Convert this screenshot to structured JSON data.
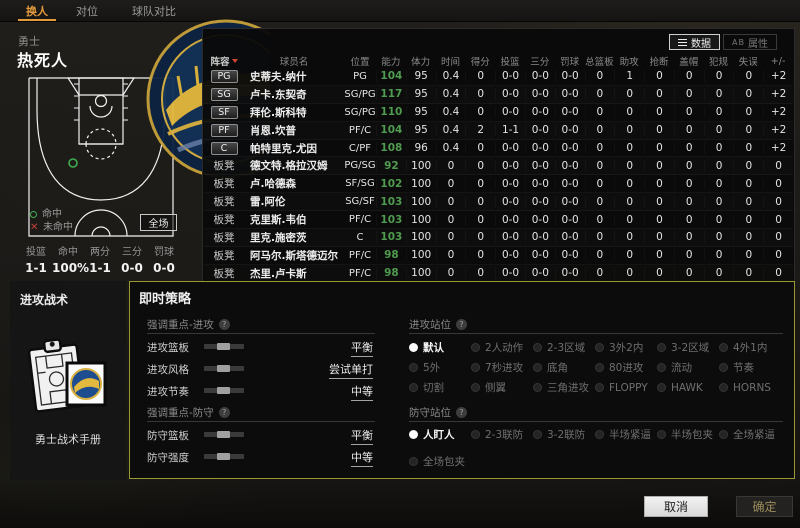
{
  "tabs": [
    {
      "label": "换人",
      "active": true
    },
    {
      "label": "对位",
      "active": false
    },
    {
      "label": "球队对比",
      "active": false
    }
  ],
  "team": {
    "name": "勇士",
    "lineup_name": "热死人"
  },
  "shot_chart": {
    "made_label": "命中",
    "missed_label": "未命中",
    "full_court_button": "全场"
  },
  "quick_stats": [
    {
      "label": "投篮",
      "value": "1-1"
    },
    {
      "label": "命中",
      "value": "100%"
    },
    {
      "label": "两分",
      "value": "1-1"
    },
    {
      "label": "三分",
      "value": "0-0"
    },
    {
      "label": "罚球",
      "value": "0-0"
    }
  ],
  "roster": {
    "data_button": "数据",
    "attr_prefix": "AB",
    "attr_button": "属性",
    "columns": [
      "阵容",
      "球员名",
      "位置",
      "能力",
      "体力",
      "时间",
      "得分",
      "投篮",
      "三分",
      "罚球",
      "总篮板",
      "助攻",
      "抢断",
      "盖帽",
      "犯规",
      "失误",
      "+/-"
    ],
    "players": [
      {
        "slot": "PG",
        "starter": true,
        "name": "史蒂夫.纳什",
        "pos": "PG",
        "ability": "104",
        "stamina": "95",
        "time": "0.4",
        "pts": "0",
        "fg": "0-0",
        "three": "0-0",
        "ft": "0-0",
        "reb": "0",
        "ast": "1",
        "stl": "0",
        "blk": "0",
        "foul": "0",
        "tov": "0",
        "plusminus": "+2"
      },
      {
        "slot": "SG",
        "starter": true,
        "name": "卢卡.东契奇",
        "pos": "SG/PG",
        "ability": "117",
        "stamina": "95",
        "time": "0.4",
        "pts": "0",
        "fg": "0-0",
        "three": "0-0",
        "ft": "0-0",
        "reb": "0",
        "ast": "0",
        "stl": "0",
        "blk": "0",
        "foul": "0",
        "tov": "0",
        "plusminus": "+2"
      },
      {
        "slot": "SF",
        "starter": true,
        "name": "拜伦.斯科特",
        "pos": "SG/PG",
        "ability": "110",
        "stamina": "95",
        "time": "0.4",
        "pts": "0",
        "fg": "0-0",
        "three": "0-0",
        "ft": "0-0",
        "reb": "0",
        "ast": "0",
        "stl": "0",
        "blk": "0",
        "foul": "0",
        "tov": "0",
        "plusminus": "+2"
      },
      {
        "slot": "PF",
        "starter": true,
        "name": "肖恩.坎普",
        "pos": "PF/C",
        "ability": "104",
        "stamina": "95",
        "time": "0.4",
        "pts": "2",
        "fg": "1-1",
        "three": "0-0",
        "ft": "0-0",
        "reb": "0",
        "ast": "0",
        "stl": "0",
        "blk": "0",
        "foul": "0",
        "tov": "0",
        "plusminus": "+2"
      },
      {
        "slot": "C",
        "starter": true,
        "name": "帕特里克.尤因",
        "pos": "C/PF",
        "ability": "108",
        "stamina": "96",
        "time": "0.4",
        "pts": "0",
        "fg": "0-0",
        "three": "0-0",
        "ft": "0-0",
        "reb": "0",
        "ast": "0",
        "stl": "0",
        "blk": "0",
        "foul": "0",
        "tov": "0",
        "plusminus": "+2"
      },
      {
        "slot": "板凳",
        "starter": false,
        "name": "德文特.格拉汉姆",
        "pos": "PG/SG",
        "ability": "92",
        "stamina": "100",
        "time": "0",
        "pts": "0",
        "fg": "0-0",
        "three": "0-0",
        "ft": "0-0",
        "reb": "0",
        "ast": "0",
        "stl": "0",
        "blk": "0",
        "foul": "0",
        "tov": "0",
        "plusminus": "0"
      },
      {
        "slot": "板凳",
        "starter": false,
        "name": "卢.哈德森",
        "pos": "SF/SG",
        "ability": "102",
        "stamina": "100",
        "time": "0",
        "pts": "0",
        "fg": "0-0",
        "three": "0-0",
        "ft": "0-0",
        "reb": "0",
        "ast": "0",
        "stl": "0",
        "blk": "0",
        "foul": "0",
        "tov": "0",
        "plusminus": "0"
      },
      {
        "slot": "板凳",
        "starter": false,
        "name": "雷.阿伦",
        "pos": "SG/SF",
        "ability": "103",
        "stamina": "100",
        "time": "0",
        "pts": "0",
        "fg": "0-0",
        "three": "0-0",
        "ft": "0-0",
        "reb": "0",
        "ast": "0",
        "stl": "0",
        "blk": "0",
        "foul": "0",
        "tov": "0",
        "plusminus": "0"
      },
      {
        "slot": "板凳",
        "starter": false,
        "name": "克里斯.韦伯",
        "pos": "PF/C",
        "ability": "103",
        "stamina": "100",
        "time": "0",
        "pts": "0",
        "fg": "0-0",
        "three": "0-0",
        "ft": "0-0",
        "reb": "0",
        "ast": "0",
        "stl": "0",
        "blk": "0",
        "foul": "0",
        "tov": "0",
        "plusminus": "0"
      },
      {
        "slot": "板凳",
        "starter": false,
        "name": "里克.施密茨",
        "pos": "C",
        "ability": "103",
        "stamina": "100",
        "time": "0",
        "pts": "0",
        "fg": "0-0",
        "three": "0-0",
        "ft": "0-0",
        "reb": "0",
        "ast": "0",
        "stl": "0",
        "blk": "0",
        "foul": "0",
        "tov": "0",
        "plusminus": "0"
      },
      {
        "slot": "板凳",
        "starter": false,
        "name": "阿马尔.斯塔德迈尔",
        "pos": "PF/C",
        "ability": "98",
        "stamina": "100",
        "time": "0",
        "pts": "0",
        "fg": "0-0",
        "three": "0-0",
        "ft": "0-0",
        "reb": "0",
        "ast": "0",
        "stl": "0",
        "blk": "0",
        "foul": "0",
        "tov": "0",
        "plusminus": "0"
      },
      {
        "slot": "板凳",
        "starter": false,
        "name": "杰里.卢卡斯",
        "pos": "PF/C",
        "ability": "98",
        "stamina": "100",
        "time": "0",
        "pts": "0",
        "fg": "0-0",
        "three": "0-0",
        "ft": "0-0",
        "reb": "0",
        "ast": "0",
        "stl": "0",
        "blk": "0",
        "foul": "0",
        "tov": "0",
        "plusminus": "0"
      }
    ]
  },
  "tactics": {
    "title": "进攻战术",
    "book_label": "勇士战术手册"
  },
  "strategy": {
    "title": "即时策略",
    "offense_emphasis": {
      "label": "强调重点-进攻",
      "rows": [
        {
          "label": "进攻篮板",
          "value": "平衡"
        },
        {
          "label": "进攻风格",
          "value": "尝试单打"
        },
        {
          "label": "进攻节奏",
          "value": "中等"
        }
      ]
    },
    "defense_emphasis": {
      "label": "强调重点-防守",
      "rows": [
        {
          "label": "防守篮板",
          "value": "平衡"
        },
        {
          "label": "防守强度",
          "value": "中等"
        }
      ]
    },
    "offense_sets": {
      "label": "进攻站位",
      "options": [
        {
          "label": "默认",
          "selected": true
        },
        {
          "label": "2人动作"
        },
        {
          "label": "2-3区域"
        },
        {
          "label": "3外2内"
        },
        {
          "label": "3-2区域"
        },
        {
          "label": "4外1内"
        },
        {
          "label": "5外"
        },
        {
          "label": "7秒进攻"
        },
        {
          "label": "底角"
        },
        {
          "label": "80进攻"
        },
        {
          "label": "流动"
        },
        {
          "label": "节奏"
        },
        {
          "label": "切割"
        },
        {
          "label": "侧翼"
        },
        {
          "label": "三角进攻"
        },
        {
          "label": "FLOPPY"
        },
        {
          "label": "HAWK"
        },
        {
          "label": "HORNS"
        }
      ]
    },
    "defense_sets": {
      "label": "防守站位",
      "options": [
        {
          "label": "人盯人",
          "selected": true
        },
        {
          "label": "2-3联防"
        },
        {
          "label": "3-2联防"
        },
        {
          "label": "半场紧逼"
        },
        {
          "label": "半场包夹"
        },
        {
          "label": "全场紧逼"
        },
        {
          "label": "全场包夹"
        }
      ]
    }
  },
  "footer": {
    "cancel": "取消",
    "confirm": "确定"
  },
  "icons": {
    "help": "?",
    "miss": "✕"
  },
  "colors": {
    "accent": "#e39a3b",
    "ability_green": "#4f9b4f",
    "panel_border": "#99992f"
  }
}
